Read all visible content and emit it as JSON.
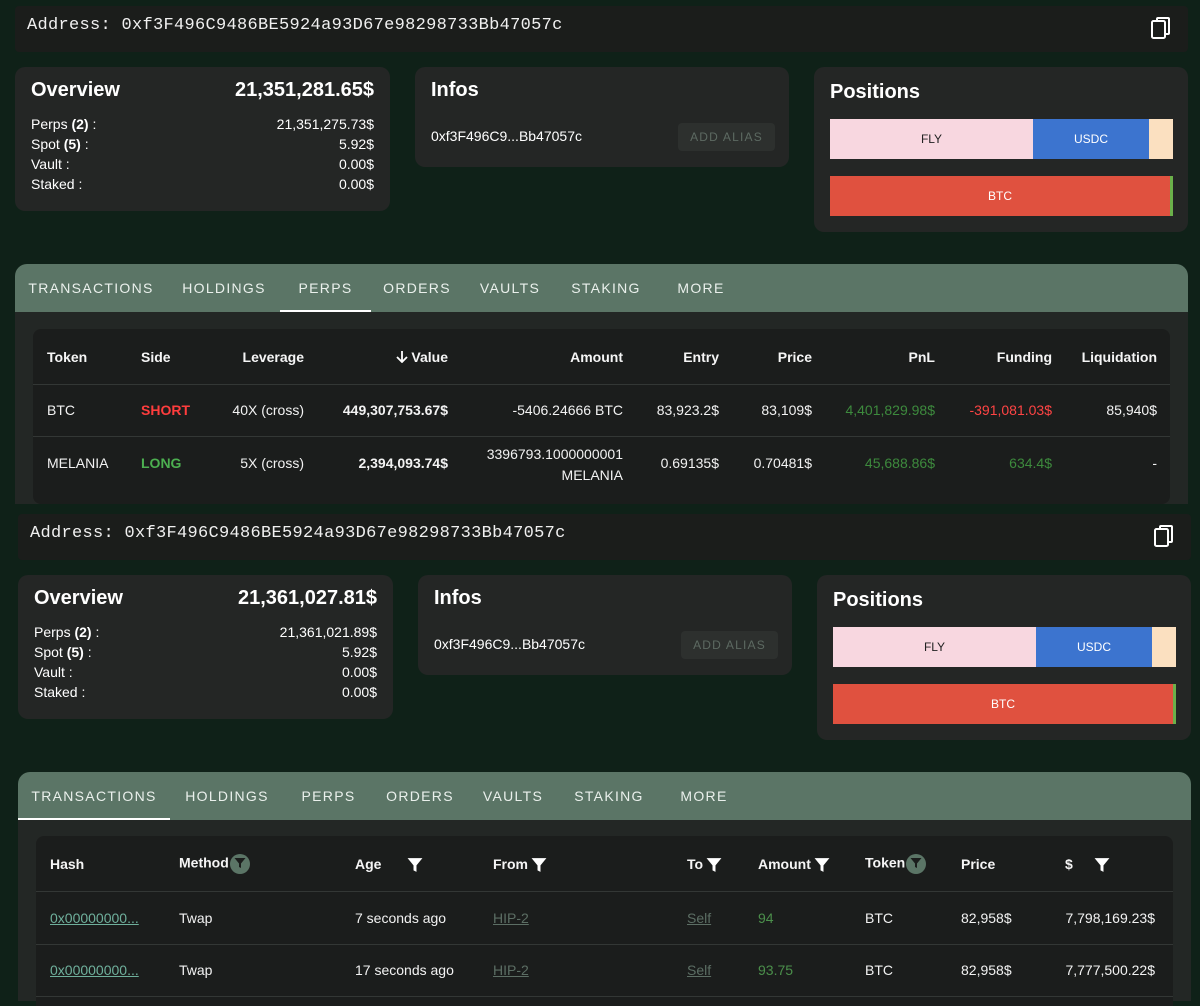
{
  "sections": [
    {
      "address_label": "Address:",
      "address": "0xf3F496C9486BE5924a93D67e98298733Bb47057c",
      "overview": {
        "title": "Overview",
        "total": "21,351,281.65$",
        "perps_label": "Perps",
        "perps_count": "(2)",
        "perps_value": "21,351,275.73$",
        "spot_label": "Spot",
        "spot_count": "(5)",
        "spot_value": "5.92$",
        "vault_label": "Vault :",
        "vault_value": "0.00$",
        "staked_label": "Staked :",
        "staked_value": "0.00$"
      },
      "infos": {
        "title": "Infos",
        "short_address": "0xf3F496C9...Bb47057c",
        "alias_button": "ADD ALIAS"
      },
      "positions": {
        "title": "Positions",
        "spot_bar": [
          {
            "label": "FLY",
            "color": "#f8d7e0"
          },
          {
            "label": "USDC",
            "color": "#3c74cf"
          },
          {
            "label": "",
            "color": "#fbe0c0"
          }
        ],
        "perp_bar": [
          {
            "label": "BTC",
            "color": "#e0513f"
          },
          {
            "label": "",
            "color": "#6bb04a"
          }
        ]
      },
      "tabs": [
        "TRANSACTIONS",
        "HOLDINGS",
        "PERPS",
        "ORDERS",
        "VAULTS",
        "STAKING",
        "MORE"
      ],
      "active_tab": "PERPS"
    },
    {
      "address_label": "Address:",
      "address": "0xf3F496C9486BE5924a93D67e98298733Bb47057c",
      "overview": {
        "title": "Overview",
        "total": "21,361,027.81$",
        "perps_label": "Perps",
        "perps_count": "(2)",
        "perps_value": "21,361,021.89$",
        "spot_label": "Spot",
        "spot_count": "(5)",
        "spot_value": "5.92$",
        "vault_label": "Vault :",
        "vault_value": "0.00$",
        "staked_label": "Staked :",
        "staked_value": "0.00$"
      },
      "infos": {
        "title": "Infos",
        "short_address": "0xf3F496C9...Bb47057c",
        "alias_button": "ADD ALIAS"
      },
      "positions": {
        "title": "Positions",
        "spot_bar": [
          {
            "label": "FLY",
            "color": "#f8d7e0"
          },
          {
            "label": "USDC",
            "color": "#3c74cf"
          },
          {
            "label": "",
            "color": "#fbe0c0"
          }
        ],
        "perp_bar": [
          {
            "label": "BTC",
            "color": "#e0513f"
          },
          {
            "label": "",
            "color": "#6bb04a"
          }
        ]
      },
      "tabs": [
        "TRANSACTIONS",
        "HOLDINGS",
        "PERPS",
        "ORDERS",
        "VAULTS",
        "STAKING",
        "MORE"
      ],
      "active_tab": "TRANSACTIONS"
    }
  ],
  "perps_table": {
    "headers": [
      "Token",
      "Side",
      "Leverage",
      "Value",
      "Amount",
      "Entry",
      "Price",
      "PnL",
      "Funding",
      "Liquidation"
    ],
    "sort_column": "Value",
    "rows": [
      {
        "token": "BTC",
        "side": "SHORT",
        "leverage": "40X (cross)",
        "value": "449,307,753.67$",
        "amount_line1": "-5406.24666 BTC",
        "amount_line2": "",
        "entry": "83,923.2$",
        "price": "83,109$",
        "pnl": "4,401,829.98$",
        "funding": "-391,081.03$",
        "liquidation": "85,940$"
      },
      {
        "token": "MELANIA",
        "side": "LONG",
        "leverage": "5X (cross)",
        "value": "2,394,093.74$",
        "amount_line1": "3396793.1000000001",
        "amount_line2": "MELANIA",
        "entry": "0.69135$",
        "price": "0.70481$",
        "pnl": "45,688.86$",
        "funding": "634.4$",
        "liquidation": "-"
      }
    ]
  },
  "transactions_table": {
    "headers": [
      "Hash",
      "Method",
      "Age",
      "From",
      "To",
      "Amount",
      "Token",
      "Price",
      "$"
    ],
    "rows": [
      {
        "hash": "0x00000000...",
        "method": "Twap",
        "age": "7 seconds ago",
        "from": "HIP-2",
        "to": "Self",
        "amount": "94",
        "token": "BTC",
        "price": "82,958$",
        "usd": "7,798,169.23$"
      },
      {
        "hash": "0x00000000...",
        "method": "Twap",
        "age": "17 seconds ago",
        "from": "HIP-2",
        "to": "Self",
        "amount": "93.75",
        "token": "BTC",
        "price": "82,958$",
        "usd": "7,777,500.22$"
      }
    ]
  }
}
